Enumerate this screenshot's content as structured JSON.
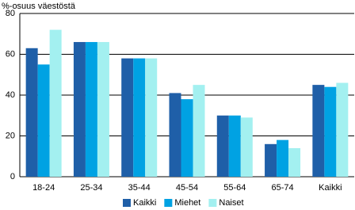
{
  "chart_data": {
    "type": "bar",
    "title": "%-osuus väestöstä",
    "categories": [
      "18-24",
      "25-34",
      "35-44",
      "45-54",
      "55-64",
      "65-74",
      "Kaikki"
    ],
    "series": [
      {
        "name": "Kaikki",
        "color": "#1f5fa8",
        "values": [
          63,
          66,
          58,
          41,
          30,
          16,
          45
        ]
      },
      {
        "name": "Miehet",
        "color": "#00a2e3",
        "values": [
          55,
          66,
          58,
          38,
          30,
          18,
          44
        ]
      },
      {
        "name": "Naiset",
        "color": "#a3f0f0",
        "values": [
          72,
          66,
          58,
          45,
          29,
          14,
          46
        ]
      }
    ],
    "ylim": [
      0,
      80
    ],
    "yticks": [
      0,
      20,
      40,
      60,
      80
    ],
    "grid": true,
    "legend": "bottom"
  }
}
